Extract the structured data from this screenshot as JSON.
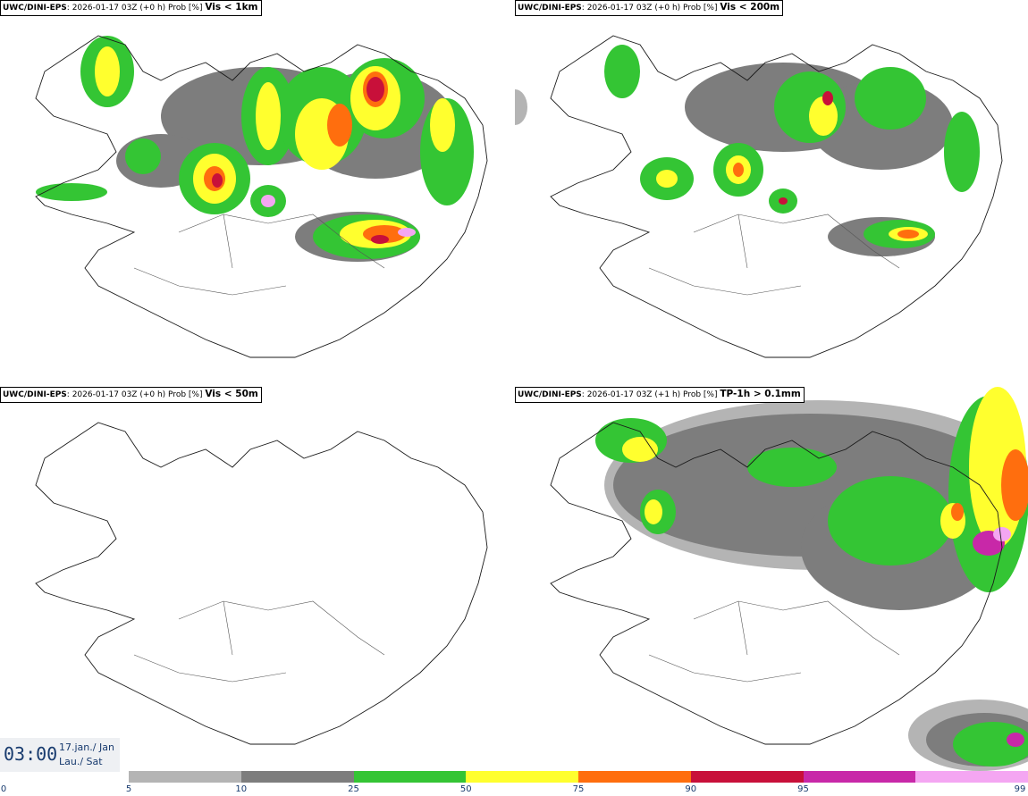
{
  "panels": [
    {
      "model": "UWC/DINI-EPS",
      "info": ": 2026-01-17 03Z (+0 h) Prob [%]",
      "criterion": "Vis < 1km"
    },
    {
      "model": "UWC/DINI-EPS",
      "info": ": 2026-01-17 03Z (+0 h) Prob [%]",
      "criterion": "Vis < 200m"
    },
    {
      "model": "UWC/DINI-EPS",
      "info": ": 2026-01-17 03Z (+0 h) Prob [%]",
      "criterion": "Vis < 50m"
    },
    {
      "model": "UWC/DINI-EPS",
      "info": ": 2026-01-17 03Z (+1 h) Prob [%]",
      "criterion": "TP-1h > 0.1mm"
    }
  ],
  "time": {
    "clock": "03:00",
    "date_line1": "17.jan./ Jan",
    "date_line2": "Lau./ Sat"
  },
  "colorbar": {
    "ticks": [
      "0",
      "5",
      "10",
      "25",
      "50",
      "75",
      "90",
      "95",
      "99"
    ],
    "colors": [
      "#b4b4b4",
      "#7d7d7d",
      "#34c534",
      "#ffff2e",
      "#ff6e0e",
      "#c8103a",
      "#c828a8",
      "#f4a6f2"
    ]
  }
}
